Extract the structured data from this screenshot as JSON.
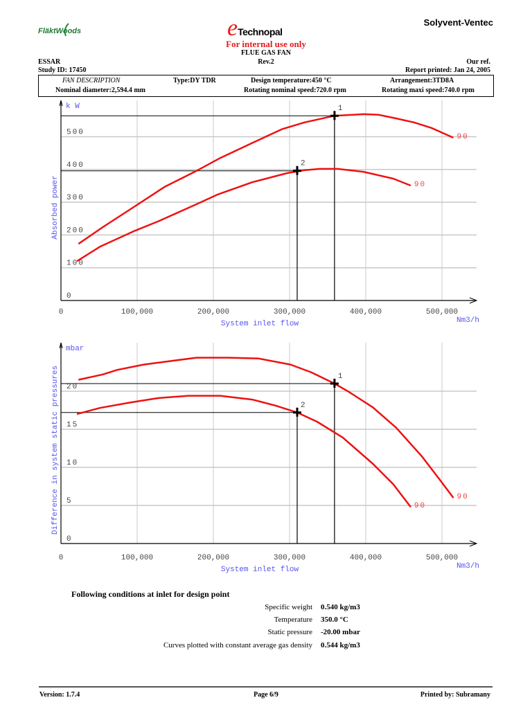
{
  "header": {
    "logo_left": "FläktWoods",
    "logo_center": "Technopal",
    "logo_center_mark": "e",
    "logo_right": "Solyvent-Ventec",
    "notice": "For internal use only",
    "document_title": "FLUE GAS FAN",
    "customer": "ESSAR",
    "revision": "Rev.2",
    "our_ref": "Our ref.",
    "study_id": "Study ID: 17450",
    "report_printed": "Report printed: Jan 24, 2005"
  },
  "fan_description": {
    "title": "FAN DESCRIPTION",
    "type": "Type:DY TDR",
    "design_temperature": "Design temperature:450 °C",
    "arrangement": "Arrangement:3TD8A",
    "nominal_diameter": "Nominal diameter:2,594.4 mm",
    "nominal_speed": "Rotating nominal speed:720.0 rpm",
    "maxi_speed": "Rotating maxi speed:740.0 rpm"
  },
  "chart_data": [
    {
      "type": "line",
      "ylabel": "Absorbed power",
      "yunit": "k W",
      "xlabel": "System inlet flow",
      "xunit": "Nm3/h",
      "xlim": [
        0,
        550000
      ],
      "ylim": [
        0,
        600
      ],
      "xticks": [
        0,
        100000,
        200000,
        300000,
        400000,
        500000
      ],
      "xtick_labels": [
        "0",
        "100,000",
        "200,000",
        "300,000",
        "400,000",
        "500,000"
      ],
      "yticks": [
        0,
        100,
        200,
        300,
        400,
        500
      ],
      "ytick_labels": [
        "0",
        "100",
        "200",
        "300",
        "400",
        "500"
      ],
      "grid": true,
      "colors": {
        "curve": "#ee1111",
        "grid": "#c8c8c8",
        "axis_label": "#5555ee",
        "tick": "#444444"
      },
      "series": [
        {
          "name": "90",
          "x": [
            23000,
            55000,
            90000,
            136000,
            178000,
            209000,
            251000,
            290000,
            320000,
            359000,
            397000,
            417000,
            436000,
            463000,
            486000,
            515000
          ],
          "y": [
            173,
            224,
            277,
            347,
            396,
            435,
            481,
            523,
            544,
            564,
            569,
            567,
            558,
            544,
            527,
            497
          ]
        },
        {
          "name": "90",
          "x": [
            21000,
            51000,
            97000,
            128000,
            178000,
            205000,
            251000,
            297000,
            320000,
            340000,
            363000,
            397000,
            436000,
            459000
          ],
          "y": [
            120,
            164,
            213,
            242,
            294,
            323,
            361,
            389,
            398,
            402,
            402,
            393,
            372,
            351
          ]
        }
      ],
      "design_points": [
        {
          "label": "1",
          "x": 359000,
          "y": 564
        },
        {
          "label": "2",
          "x": 310000,
          "y": 396
        }
      ]
    },
    {
      "type": "line",
      "ylabel": "Difference in system static pressures",
      "yunit": "mbar",
      "xlabel": "System inlet flow",
      "xunit": "Nm3/h",
      "xlim": [
        0,
        550000
      ],
      "ylim": [
        0,
        26
      ],
      "xticks": [
        0,
        100000,
        200000,
        300000,
        400000,
        500000
      ],
      "xtick_labels": [
        "0",
        "100,000",
        "200,000",
        "300,000",
        "400,000",
        "500,000"
      ],
      "yticks": [
        0,
        5,
        10,
        15,
        20
      ],
      "ytick_labels": [
        "0",
        "5",
        "10",
        "15",
        "20"
      ],
      "grid": true,
      "colors": {
        "curve": "#ee1111",
        "grid": "#c8c8c8",
        "axis_label": "#5555ee",
        "tick": "#444444"
      },
      "series": [
        {
          "name": "90",
          "x": [
            23000,
            55000,
            74000,
            109000,
            147000,
            178000,
            220000,
            259000,
            301000,
            328000,
            359000,
            378000,
            409000,
            440000,
            474000,
            497000,
            515000
          ],
          "y": [
            21.5,
            22.2,
            22.8,
            23.5,
            24.0,
            24.4,
            24.4,
            24.3,
            23.5,
            22.5,
            21.0,
            19.9,
            17.9,
            15.2,
            11.4,
            8.4,
            6.0
          ]
        },
        {
          "name": "90",
          "x": [
            21000,
            51000,
            90000,
            128000,
            167000,
            209000,
            251000,
            282000,
            310000,
            336000,
            370000,
            409000,
            436000,
            459000
          ],
          "y": [
            17.0,
            17.8,
            18.5,
            19.1,
            19.4,
            19.4,
            18.9,
            18.1,
            17.2,
            16.0,
            13.9,
            10.5,
            7.8,
            4.8
          ]
        }
      ],
      "design_points": [
        {
          "label": "1",
          "x": 359000,
          "y": 21.0
        },
        {
          "label": "2",
          "x": 310000,
          "y": 17.2
        }
      ]
    }
  ],
  "conditions": {
    "title": "Following conditions at inlet for design point",
    "rows": [
      {
        "label": "Specific weight",
        "value": "0.540 kg/m3"
      },
      {
        "label": "Temperature",
        "value": "350.0 °C"
      },
      {
        "label": "Static pressure",
        "value": "-20.00 mbar"
      },
      {
        "label": "Curves plotted with constant average gas density",
        "value": "0.544 kg/m3"
      }
    ]
  },
  "footer": {
    "version": "Version: 1.7.4",
    "page": "Page 6/9",
    "printed_by": "Printed by: Subramany"
  }
}
